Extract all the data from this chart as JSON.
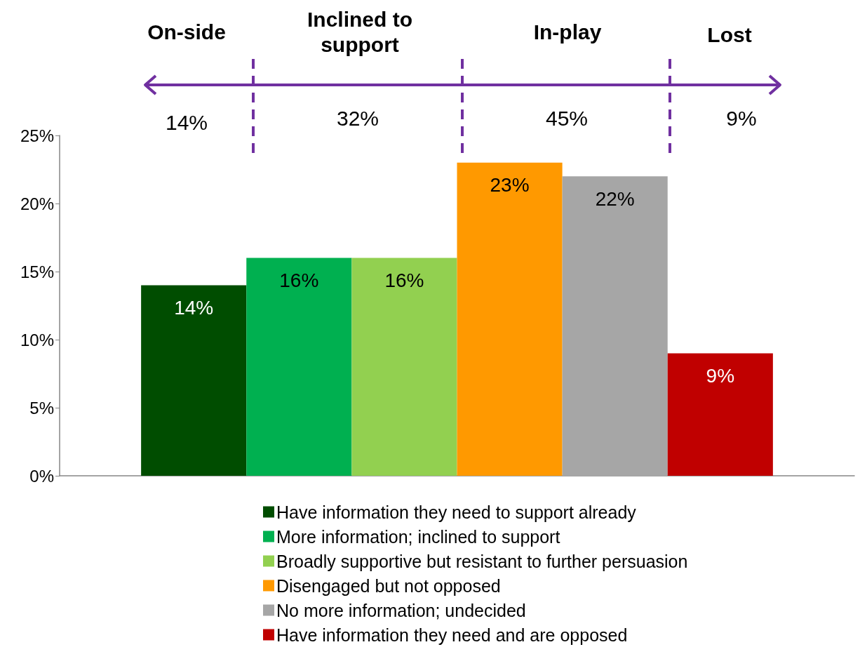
{
  "chart_data": {
    "type": "bar",
    "categories": [
      null
    ],
    "series": [
      {
        "name": "Have information they need to support already",
        "color": "#004d00",
        "values": [
          14
        ],
        "value_labels": [
          "14%"
        ]
      },
      {
        "name": "More information; inclined to support",
        "color": "#00b050",
        "values": [
          16
        ],
        "value_labels": [
          "16%"
        ]
      },
      {
        "name": "Broadly supportive but resistant to further persuasion",
        "color": "#92d050",
        "values": [
          16
        ],
        "value_labels": [
          "16%"
        ]
      },
      {
        "name": "Disengaged but not opposed",
        "color": "#ff9900",
        "values": [
          23
        ],
        "value_labels": [
          "23%"
        ]
      },
      {
        "name": "No more information; undecided",
        "color": "#a6a6a6",
        "values": [
          22
        ],
        "value_labels": [
          "22%"
        ]
      },
      {
        "name": "Have information they need and are opposed",
        "color": "#c00000",
        "values": [
          9
        ],
        "value_labels": [
          "9%"
        ]
      }
    ],
    "ylim": [
      0,
      25
    ],
    "yticks": [
      {
        "value": 0,
        "label": "0%"
      },
      {
        "value": 5,
        "label": "5%"
      },
      {
        "value": 10,
        "label": "10%"
      },
      {
        "value": 15,
        "label": "15%"
      },
      {
        "value": 20,
        "label": "20%"
      },
      {
        "value": 25,
        "label": "25%"
      }
    ],
    "grid": false,
    "legend": "bottom",
    "tick_labels": "y",
    "annotations": [
      "On-side",
      "Inclined to support",
      "In-play",
      "Lost",
      "14%",
      "32%",
      "45%",
      "9%"
    ]
  }
}
